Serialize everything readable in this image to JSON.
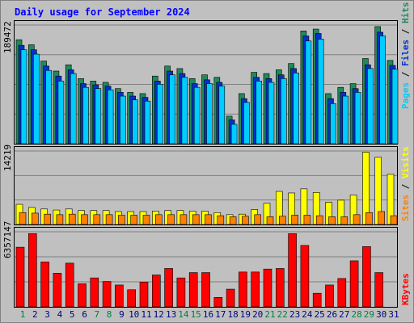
{
  "chart_data": [
    {
      "type": "bar",
      "title": "Daily usage for September 2024",
      "panel": "hits-files-pages",
      "ylabel_parts": [
        "Pages",
        "Files",
        "Hits"
      ],
      "ymax_label": "189472",
      "ymax": 189472,
      "series": [
        {
          "name": "Hits",
          "color": "#1f8a5a",
          "values": [
            166000,
            158000,
            132000,
            116000,
            126000,
            104000,
            100000,
            98000,
            88000,
            82000,
            80000,
            108000,
            124000,
            120000,
            104000,
            110000,
            106000,
            44000,
            80000,
            114000,
            112000,
            118000,
            128000,
            180000,
            183000,
            80000,
            90000,
            96000,
            136000,
            187000,
            133000
          ]
        },
        {
          "name": "Files",
          "color": "#0033cc",
          "values": [
            157000,
            150000,
            124000,
            108000,
            118000,
            96000,
            94000,
            92000,
            82000,
            76000,
            74000,
            100000,
            116000,
            112000,
            96000,
            102000,
            98000,
            38000,
            72000,
            106000,
            104000,
            110000,
            120000,
            172000,
            176000,
            72000,
            82000,
            88000,
            126000,
            178000,
            125000
          ]
        },
        {
          "name": "Pages",
          "color": "#00ccff",
          "values": [
            150000,
            143000,
            117000,
            100000,
            112000,
            90000,
            88000,
            86000,
            76000,
            70000,
            68000,
            95000,
            110000,
            106000,
            90000,
            96000,
            92000,
            31000,
            66000,
            100000,
            98000,
            104000,
            113000,
            164000,
            167000,
            64000,
            76000,
            82000,
            120000,
            172000,
            119000
          ]
        }
      ]
    },
    {
      "type": "bar",
      "panel": "visits-sites",
      "ylabel_parts": [
        "Sites",
        "Visits"
      ],
      "ymax_label": "14219",
      "ymax": 14219,
      "series": [
        {
          "name": "Visits",
          "color": "#ffff00",
          "values": [
            3900,
            3300,
            3000,
            2800,
            3000,
            2700,
            2700,
            2700,
            2500,
            2500,
            2500,
            2600,
            2700,
            2700,
            2600,
            2600,
            2300,
            1900,
            2000,
            2900,
            4100,
            6400,
            6100,
            6900,
            6200,
            4300,
            4700,
            5700,
            14000,
            13000,
            9700
          ]
        },
        {
          "name": "Sites",
          "color": "#ff8000",
          "values": [
            2300,
            2200,
            2000,
            1900,
            2000,
            1900,
            1900,
            1900,
            1800,
            1800,
            1800,
            1900,
            1900,
            1900,
            1900,
            1900,
            1700,
            1500,
            1600,
            1900,
            1500,
            1600,
            1800,
            1800,
            1700,
            1500,
            1500,
            1900,
            2300,
            2500,
            1700
          ]
        }
      ]
    },
    {
      "type": "bar",
      "panel": "kbytes",
      "ylabel_parts": [
        "KBytes"
      ],
      "ymax_label": "6357147",
      "ymax": 6357147,
      "series": [
        {
          "name": "KBytes",
          "color": "#ff0000",
          "values": [
            5050000,
            6200000,
            3800000,
            2850000,
            3700000,
            1950000,
            2450000,
            2150000,
            1850000,
            1450000,
            2100000,
            2700000,
            3250000,
            2450000,
            2900000,
            2900000,
            800000,
            1500000,
            2950000,
            2950000,
            3200000,
            3250000,
            6200000,
            5200000,
            1150000,
            1850000,
            2400000,
            3900000,
            5100000,
            2900000,
            0
          ]
        }
      ]
    }
  ],
  "x_labels": [
    "1",
    "2",
    "3",
    "4",
    "5",
    "6",
    "7",
    "8",
    "9",
    "10",
    "11",
    "12",
    "13",
    "14",
    "15",
    "16",
    "17",
    "18",
    "19",
    "20",
    "21",
    "22",
    "23",
    "24",
    "25",
    "26",
    "27",
    "28",
    "29",
    "30",
    "31"
  ],
  "weekend_days": [
    1,
    7,
    8,
    14,
    15,
    21,
    22,
    28,
    29
  ],
  "colors": {
    "background": "#c0c0c0",
    "plot_bg": "#c0c0c0",
    "weekday_label": "#000080",
    "weekend_label": "#008040",
    "title": "#0000ff"
  }
}
